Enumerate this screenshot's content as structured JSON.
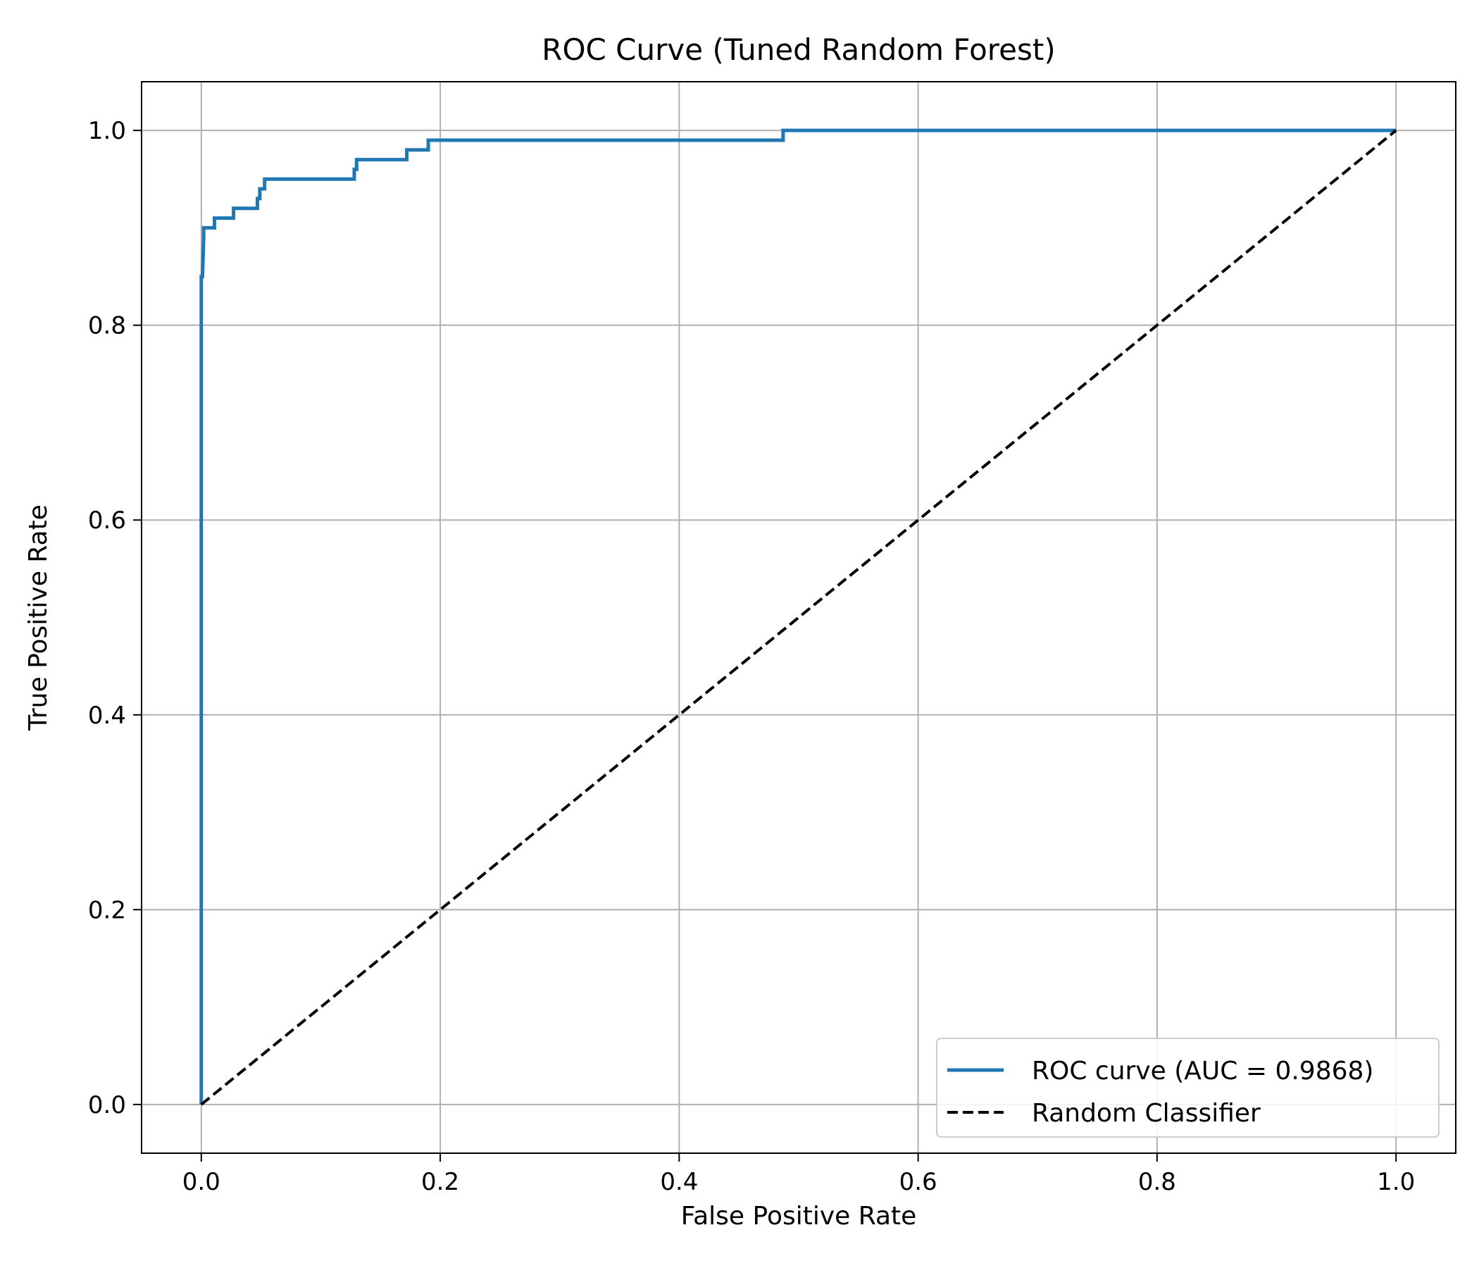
{
  "chart_data": {
    "type": "line",
    "title": "ROC Curve (Tuned Random Forest)",
    "xlabel": "False Positive Rate",
    "ylabel": "True Positive Rate",
    "xlim": [
      -0.05,
      1.05
    ],
    "ylim": [
      -0.05,
      1.05
    ],
    "xticks": [
      0.0,
      0.2,
      0.4,
      0.6,
      0.8,
      1.0
    ],
    "yticks": [
      0.0,
      0.2,
      0.4,
      0.6,
      0.8,
      1.0
    ],
    "xtick_labels": [
      "0.0",
      "0.2",
      "0.4",
      "0.6",
      "0.8",
      "1.0"
    ],
    "ytick_labels": [
      "0.0",
      "0.2",
      "0.4",
      "0.6",
      "0.8",
      "1.0"
    ],
    "grid": true,
    "legend_position": "bottom-right",
    "series": [
      {
        "name": "ROC curve (AUC = 0.9868)",
        "color": "#1f77b4",
        "style": "solid",
        "x": [
          0.0,
          0.0,
          0.0,
          0.001,
          0.002,
          0.002,
          0.011,
          0.011,
          0.027,
          0.027,
          0.047,
          0.047,
          0.049,
          0.049,
          0.053,
          0.053,
          0.128,
          0.128,
          0.13,
          0.13,
          0.172,
          0.172,
          0.19,
          0.19,
          0.487,
          0.487,
          1.0
        ],
        "y": [
          0.0,
          0.76,
          0.85,
          0.85,
          0.89,
          0.9,
          0.9,
          0.91,
          0.91,
          0.92,
          0.92,
          0.93,
          0.93,
          0.94,
          0.94,
          0.95,
          0.95,
          0.96,
          0.96,
          0.97,
          0.97,
          0.98,
          0.98,
          0.99,
          0.99,
          1.0,
          1.0
        ]
      },
      {
        "name": "Random Classifier",
        "color": "#000000",
        "style": "dashed",
        "x": [
          0.0,
          1.0
        ],
        "y": [
          0.0,
          1.0
        ]
      }
    ]
  }
}
